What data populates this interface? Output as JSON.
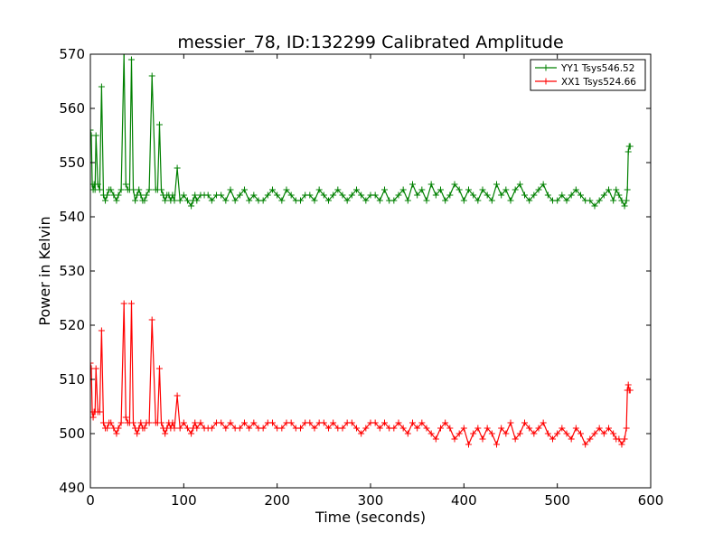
{
  "chart_data": {
    "type": "line",
    "title": "messier_78, ID:132299 Calibrated Amplitude",
    "xlabel": "Time (seconds)",
    "ylabel": "Power in Kelvin",
    "xlim": [
      0,
      600
    ],
    "ylim": [
      490,
      570
    ],
    "xticks": [
      "0",
      "100",
      "200",
      "300",
      "400",
      "500",
      "600"
    ],
    "yticks": [
      "490",
      "500",
      "510",
      "520",
      "530",
      "540",
      "550",
      "560",
      "570"
    ],
    "grid": false,
    "legend_position": "top-right",
    "marker": "plus",
    "series": [
      {
        "name": "YY1 Tsys546.52",
        "color": "#008000",
        "x": [
          0,
          1,
          2,
          3,
          4,
          5,
          6,
          8,
          10,
          12,
          14,
          16,
          18,
          20,
          22,
          25,
          28,
          30,
          33,
          36,
          38,
          40,
          42,
          44,
          46,
          48,
          50,
          52,
          54,
          56,
          58,
          60,
          63,
          66,
          70,
          72,
          74,
          76,
          78,
          80,
          82,
          84,
          86,
          88,
          90,
          93,
          96,
          100,
          104,
          108,
          110,
          112,
          114,
          118,
          122,
          126,
          130,
          135,
          140,
          145,
          150,
          155,
          160,
          165,
          170,
          175,
          180,
          185,
          190,
          195,
          200,
          205,
          210,
          215,
          220,
          225,
          230,
          235,
          240,
          245,
          250,
          255,
          260,
          265,
          270,
          275,
          280,
          285,
          290,
          295,
          300,
          305,
          310,
          315,
          320,
          325,
          330,
          335,
          340,
          345,
          350,
          355,
          360,
          365,
          370,
          375,
          380,
          385,
          390,
          395,
          400,
          405,
          410,
          415,
          420,
          425,
          430,
          435,
          440,
          445,
          450,
          455,
          460,
          465,
          470,
          475,
          480,
          485,
          490,
          495,
          500,
          505,
          510,
          515,
          520,
          525,
          530,
          535,
          540,
          545,
          550,
          555,
          560,
          563,
          566,
          569,
          572,
          574,
          575,
          576,
          577,
          578
        ],
        "y": [
          556,
          555,
          546,
          545,
          546,
          545,
          555,
          546,
          545,
          564,
          544,
          543,
          544,
          545,
          545,
          544,
          543,
          544,
          545,
          570,
          546,
          545,
          545,
          569,
          545,
          543,
          544,
          545,
          544,
          543,
          543,
          544,
          545,
          566,
          545,
          545,
          557,
          545,
          544,
          543,
          544,
          544,
          543,
          544,
          543,
          549,
          543,
          544,
          543,
          542,
          543,
          544,
          543,
          544,
          544,
          544,
          543,
          544,
          544,
          543,
          545,
          543,
          544,
          545,
          543,
          544,
          543,
          543,
          544,
          545,
          544,
          543,
          545,
          544,
          543,
          543,
          544,
          544,
          543,
          545,
          544,
          543,
          544,
          545,
          544,
          543,
          544,
          545,
          544,
          543,
          544,
          544,
          543,
          545,
          543,
          543,
          544,
          545,
          543,
          546,
          544,
          545,
          543,
          546,
          544,
          545,
          543,
          544,
          546,
          545,
          543,
          545,
          544,
          543,
          545,
          544,
          543,
          546,
          544,
          545,
          543,
          545,
          546,
          544,
          543,
          544,
          545,
          546,
          544,
          543,
          543,
          544,
          543,
          544,
          545,
          544,
          543,
          543,
          542,
          543,
          544,
          545,
          543,
          545,
          544,
          543,
          542,
          543,
          545,
          552,
          553,
          553
        ],
        "x_sparse_note": ""
      },
      {
        "name": "XX1 Tsys524.66",
        "color": "#ff0000",
        "x": [
          0,
          1,
          2,
          3,
          4,
          5,
          6,
          8,
          10,
          12,
          14,
          16,
          18,
          20,
          22,
          25,
          28,
          30,
          33,
          36,
          38,
          40,
          42,
          44,
          46,
          48,
          50,
          52,
          54,
          56,
          58,
          60,
          63,
          66,
          70,
          72,
          74,
          76,
          78,
          80,
          82,
          84,
          86,
          88,
          90,
          93,
          96,
          100,
          104,
          108,
          110,
          112,
          114,
          118,
          122,
          126,
          130,
          135,
          140,
          145,
          150,
          155,
          160,
          165,
          170,
          175,
          180,
          185,
          190,
          195,
          200,
          205,
          210,
          215,
          220,
          225,
          230,
          235,
          240,
          245,
          250,
          255,
          260,
          265,
          270,
          275,
          280,
          285,
          290,
          295,
          300,
          305,
          310,
          315,
          320,
          325,
          330,
          335,
          340,
          345,
          350,
          355,
          360,
          365,
          370,
          375,
          380,
          385,
          390,
          395,
          400,
          405,
          410,
          415,
          420,
          425,
          430,
          435,
          440,
          445,
          450,
          455,
          460,
          465,
          470,
          475,
          480,
          485,
          490,
          495,
          500,
          505,
          510,
          515,
          520,
          525,
          530,
          535,
          540,
          545,
          550,
          555,
          560,
          563,
          566,
          569,
          572,
          574,
          575,
          576,
          577,
          578
        ],
        "y": [
          513,
          512,
          504,
          503,
          504,
          504,
          512,
          504,
          504,
          519,
          502,
          501,
          501,
          502,
          502,
          501,
          500,
          501,
          502,
          524,
          503,
          502,
          502,
          524,
          502,
          501,
          500,
          501,
          502,
          501,
          501,
          502,
          502,
          521,
          502,
          502,
          512,
          502,
          501,
          500,
          501,
          502,
          501,
          502,
          501,
          507,
          501,
          502,
          501,
          500,
          501,
          502,
          501,
          502,
          501,
          501,
          501,
          502,
          502,
          501,
          502,
          501,
          501,
          502,
          501,
          502,
          501,
          501,
          502,
          502,
          501,
          501,
          502,
          502,
          501,
          501,
          502,
          502,
          501,
          502,
          502,
          501,
          502,
          501,
          501,
          502,
          502,
          501,
          500,
          501,
          502,
          502,
          501,
          502,
          501,
          501,
          502,
          501,
          500,
          502,
          501,
          502,
          501,
          500,
          499,
          501,
          502,
          501,
          499,
          500,
          501,
          498,
          500,
          501,
          499,
          501,
          500,
          498,
          501,
          500,
          502,
          499,
          500,
          502,
          501,
          500,
          501,
          502,
          500,
          499,
          500,
          501,
          500,
          499,
          501,
          500,
          498,
          499,
          500,
          501,
          500,
          501,
          500,
          499,
          499,
          498,
          499,
          501,
          508,
          509,
          508,
          508
        ],
        "x_sparse_note": ""
      }
    ]
  }
}
